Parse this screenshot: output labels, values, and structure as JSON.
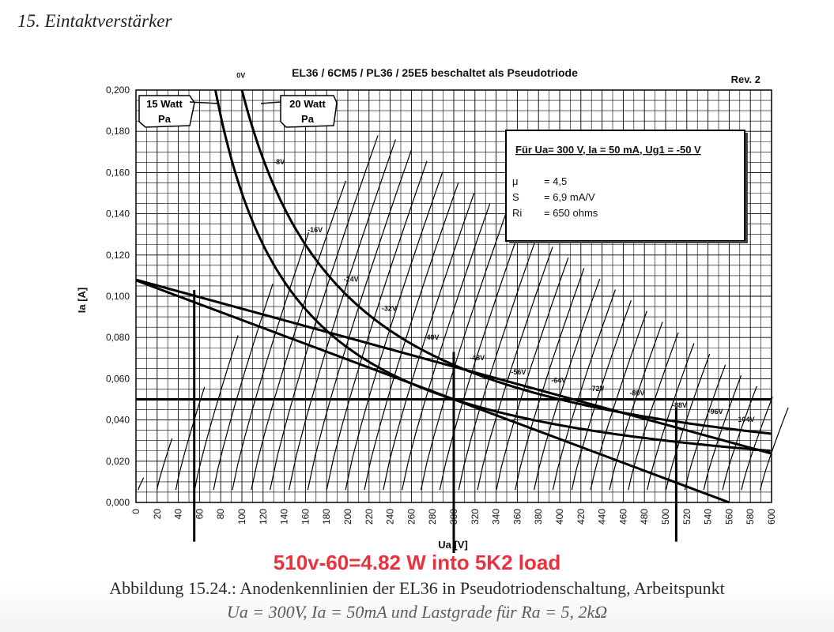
{
  "heading": "15. Eintaktverstärker",
  "annotation": "510v-60=4.82 W into 5K2 load",
  "caption": {
    "line1": "Abbildung 15.24.: Anodenkennlinien der EL36 in Pseudotriodenschaltung, Arbeitspunkt",
    "line2": "Ua = 300V, Ia = 50mA und Lastgrade für Ra = 5, 2kΩ"
  },
  "chart_data": {
    "type": "line",
    "title": "EL36 / 6CM5 / PL36 / 25E5 beschaltet als Pseudotriode",
    "revision": "Rev. 2",
    "xlabel": "Ua [V]",
    "ylabel": "Ia [A]",
    "xlim": [
      0,
      600
    ],
    "ylim": [
      0,
      0.2
    ],
    "grid": true,
    "x_ticks": [
      "0",
      "20",
      "40",
      "60",
      "80",
      "100",
      "120",
      "140",
      "160",
      "180",
      "200",
      "220",
      "240",
      "260",
      "280",
      "300",
      "320",
      "340",
      "360",
      "380",
      "400",
      "420",
      "440",
      "460",
      "480",
      "500",
      "520",
      "540",
      "560",
      "580",
      "600"
    ],
    "y_ticks": [
      "0,000",
      "0,020",
      "0,040",
      "0,060",
      "0,080",
      "0,100",
      "0,120",
      "0,140",
      "0,160",
      "0,180",
      "0,200"
    ],
    "grid_curves": {
      "labels": [
        "0V",
        "-8V",
        "-16V",
        "-24V",
        "-32V",
        "-40V",
        "-48V",
        "-56V",
        "-64V",
        "-72V",
        "-80V",
        "-88V",
        "-96V",
        "-104V"
      ],
      "label_points": [
        [
          95,
          0.206
        ],
        [
          130,
          0.164
        ],
        [
          162,
          0.131
        ],
        [
          196,
          0.107
        ],
        [
          232,
          0.093
        ],
        [
          272,
          0.079
        ],
        [
          315,
          0.069
        ],
        [
          354,
          0.062
        ],
        [
          392,
          0.058
        ],
        [
          428,
          0.054
        ],
        [
          466,
          0.052
        ],
        [
          506,
          0.046
        ],
        [
          540,
          0.043
        ],
        [
          566,
          0.039
        ]
      ]
    },
    "power_curves": [
      {
        "label": "15 Watt\nPa",
        "watts": 15
      },
      {
        "label": "20 Watt\nPa",
        "watts": 20
      }
    ],
    "load_lines": [
      {
        "name": "Ra 5,2k",
        "points": [
          [
            0,
            0.1077
          ],
          [
            560,
            0
          ]
        ]
      },
      {
        "name": "",
        "points": [
          [
            0,
            0.108
          ],
          [
            600,
            0.0237
          ]
        ]
      }
    ],
    "reference_lines": {
      "horizontal_ia": 0.05,
      "vertical_ua": [
        55,
        300,
        510
      ]
    },
    "info_box": {
      "header": "Für Ua= 300 V, Ia = 50 mA, Ug1 = -50 V",
      "rows": [
        {
          "symbol": "μ",
          "value": "= 4,5"
        },
        {
          "symbol": "S",
          "value": "= 6,9 mA/V"
        },
        {
          "symbol": "Ri",
          "value": "= 650 ohms"
        }
      ]
    }
  }
}
